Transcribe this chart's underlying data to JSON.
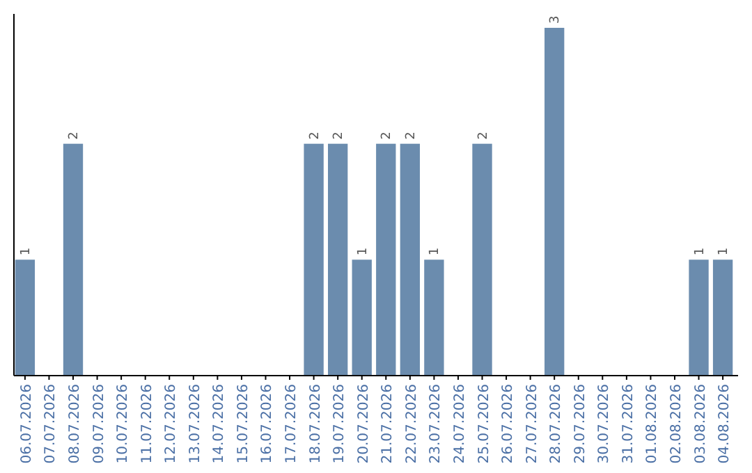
{
  "chart_data": {
    "type": "bar",
    "categories": [
      "06.07.2026",
      "07.07.2026",
      "08.07.2026",
      "09.07.2026",
      "10.07.2026",
      "11.07.2026",
      "12.07.2026",
      "13.07.2026",
      "14.07.2026",
      "15.07.2026",
      "16.07.2026",
      "17.07.2026",
      "18.07.2026",
      "19.07.2026",
      "20.07.2026",
      "21.07.2026",
      "22.07.2026",
      "23.07.2026",
      "24.07.2026",
      "25.07.2026",
      "26.07.2026",
      "27.07.2026",
      "28.07.2026",
      "29.07.2026",
      "30.07.2026",
      "31.07.2026",
      "01.08.2026",
      "02.08.2026",
      "03.08.2026",
      "04.08.2026"
    ],
    "values": [
      1,
      0,
      2,
      0,
      0,
      0,
      0,
      0,
      0,
      0,
      0,
      0,
      2,
      2,
      1,
      2,
      2,
      1,
      0,
      2,
      0,
      0,
      3,
      0,
      0,
      0,
      0,
      0,
      1,
      1
    ],
    "value_labels": [
      "1",
      null,
      "2",
      null,
      null,
      null,
      null,
      null,
      null,
      null,
      null,
      null,
      "2",
      "2",
      "1",
      "2",
      "2",
      "1",
      null,
      "2",
      null,
      null,
      "3",
      null,
      null,
      null,
      null,
      null,
      "1",
      "1"
    ],
    "color": "#6b8cae"
  }
}
